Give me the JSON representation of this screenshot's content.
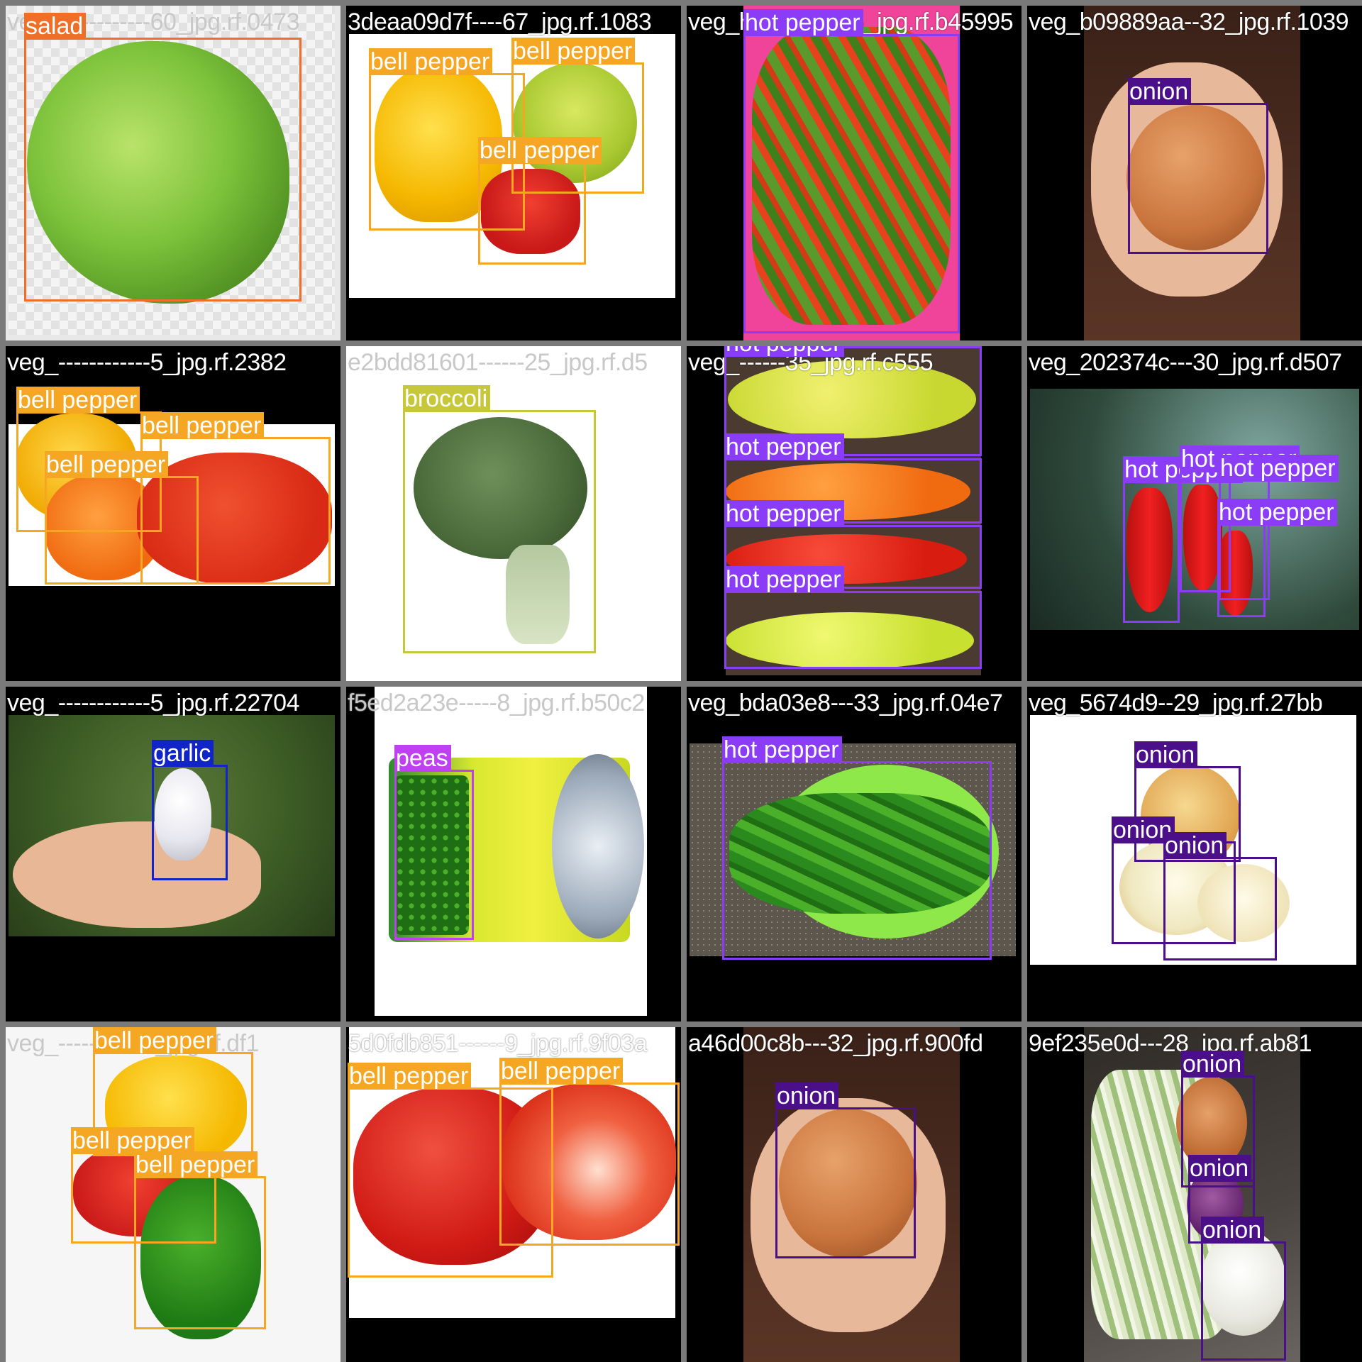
{
  "tiles": [
    {
      "id": "t0",
      "filename": "veg_------------60_jpg.rf.0473",
      "labels": [
        "salad"
      ]
    },
    {
      "id": "t1",
      "filename": "3deaa09d7f----67_jpg.rf.1083",
      "labels": [
        "bell pepper",
        "bell pepper",
        "bell pepper"
      ]
    },
    {
      "id": "t2",
      "filename": "veg_hot pepper5_jpg.rf.b45995",
      "labels": [
        "hot pepper"
      ]
    },
    {
      "id": "t3",
      "filename": "veg_b09889aa--32_jpg.rf.1039",
      "labels": [
        "onion"
      ]
    },
    {
      "id": "t4",
      "filename": "veg_------------5_jpg.rf.2382",
      "labels": [
        "bell pepper",
        "bell pepper",
        "bell pepper"
      ]
    },
    {
      "id": "t5",
      "filename": "e2bdd81601------25_jpg.rf.d5",
      "labels": [
        "broccoli"
      ]
    },
    {
      "id": "t6",
      "filename": "veg_------35_jpg.rf.c555",
      "labels": [
        "hot pepper",
        "hot pepper",
        "hot pepper",
        "hot pepper"
      ]
    },
    {
      "id": "t7",
      "filename": "veg_202374c---30_jpg.rf.d507",
      "labels": [
        "hot pepper",
        "hot pepper",
        "hot pepper",
        "hot pepper"
      ]
    },
    {
      "id": "t8",
      "filename": "veg_------------5_jpg.rf.22704",
      "labels": [
        "garlic"
      ]
    },
    {
      "id": "t9",
      "filename": "f5ed2a23e-----8_jpg.rf.b50c2",
      "labels": [
        "peas"
      ]
    },
    {
      "id": "t10",
      "filename": "veg_bda03e8---33_jpg.rf.04e7",
      "labels": [
        "hot pepper"
      ]
    },
    {
      "id": "t11",
      "filename": "veg_5674d9--29_jpg.rf.27bb",
      "labels": [
        "onion",
        "onion",
        "onion"
      ]
    },
    {
      "id": "t12",
      "filename": "veg_-----------5_jpg.rf.df1",
      "labels": [
        "bell pepper",
        "bell pepper",
        "bell pepper"
      ]
    },
    {
      "id": "t13",
      "filename": "5d0fdb851------9_jpg.rf.9f03a",
      "labels": [
        "bell pepper",
        "bell pepper"
      ]
    },
    {
      "id": "t14",
      "filename": "a46d00c8b---32_jpg.rf.900fd",
      "labels": [
        "onion"
      ]
    },
    {
      "id": "t15",
      "filename": "9ef235e0d---28_jpg.rf.ab81",
      "labels": [
        "onion",
        "onion",
        "onion"
      ]
    }
  ],
  "class_colors": {
    "salad": "#f06f28",
    "bell pepper": "#f5a623",
    "hot pepper": "#8b3cf7",
    "onion": "#4b0f8a",
    "broccoli": "#c6c83a",
    "garlic": "#1024c8",
    "peas": "#bf40f0"
  }
}
